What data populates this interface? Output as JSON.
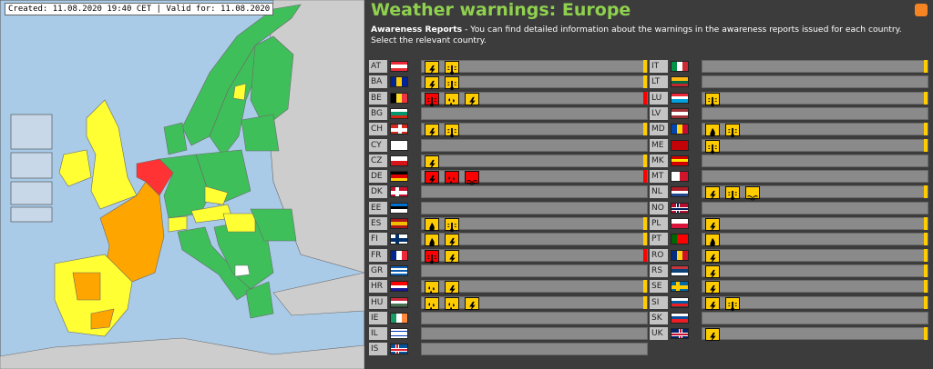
{
  "header": {
    "created": "Created: 11.08.2020 19:40 CET | Valid for: 11.08.2020"
  },
  "title": "Weather warnings: Europe",
  "intro_label": "Awareness Reports",
  "intro_text": "- You can find detailed information about the warnings in the awareness reports issued for each country. Select the relevant country.",
  "columns": [
    [
      {
        "code": "AT",
        "flag": {
          "dir": "h",
          "colors": [
            "#ed2939",
            "#ffffff",
            "#ed2939"
          ]
        },
        "warnings": [
          {
            "kind": "thunder",
            "color": "#ffcc00"
          },
          {
            "kind": "temperature",
            "color": "#ffcc00"
          }
        ],
        "level": "#ffcc00"
      },
      {
        "code": "BA",
        "flag": {
          "dir": "v",
          "colors": [
            "#002395",
            "#fecb00",
            "#002395"
          ]
        },
        "warnings": [
          {
            "kind": "thunder",
            "color": "#ffcc00"
          },
          {
            "kind": "temperature",
            "color": "#ffcc00"
          }
        ],
        "level": "#ffcc00"
      },
      {
        "code": "BE",
        "flag": {
          "dir": "v",
          "colors": [
            "#000000",
            "#fdda24",
            "#ef3340"
          ]
        },
        "warnings": [
          {
            "kind": "temperature",
            "color": "#ff0000"
          },
          {
            "kind": "rain",
            "color": "#ffcc00"
          },
          {
            "kind": "thunder",
            "color": "#ffcc00"
          }
        ],
        "level": "#ff0000"
      },
      {
        "code": "BG",
        "flag": {
          "dir": "h",
          "colors": [
            "#ffffff",
            "#00966e",
            "#d62612"
          ]
        },
        "warnings": []
      },
      {
        "code": "CH",
        "flag": {
          "dir": "h",
          "colors": [
            "#d52b1e"
          ],
          "cross": {
            "color": "#ffffff",
            "center": true
          }
        },
        "warnings": [
          {
            "kind": "thunder",
            "color": "#ffcc00"
          },
          {
            "kind": "temperature",
            "color": "#ffcc00"
          }
        ],
        "level": "#ffcc00"
      },
      {
        "code": "CY",
        "flag": {
          "dir": "h",
          "colors": [
            "#ffffff"
          ]
        },
        "warnings": []
      },
      {
        "code": "CZ",
        "flag": {
          "dir": "h",
          "colors": [
            "#ffffff",
            "#d7141a"
          ]
        },
        "warnings": [
          {
            "kind": "thunder",
            "color": "#ffcc00"
          }
        ],
        "level": "#ffcc00"
      },
      {
        "code": "DE",
        "flag": {
          "dir": "h",
          "colors": [
            "#000000",
            "#dd0000",
            "#ffce00"
          ]
        },
        "warnings": [
          {
            "kind": "thunder",
            "color": "#ff0000"
          },
          {
            "kind": "rain",
            "color": "#ff0000"
          },
          {
            "kind": "flood",
            "color": "#ff0000"
          }
        ],
        "level": "#ff0000"
      },
      {
        "code": "DK",
        "flag": {
          "dir": "h",
          "colors": [
            "#c8102e"
          ],
          "cross": {
            "color": "#ffffff"
          }
        },
        "warnings": []
      },
      {
        "code": "EE",
        "flag": {
          "dir": "h",
          "colors": [
            "#0072ce",
            "#000000",
            "#ffffff"
          ]
        },
        "warnings": []
      },
      {
        "code": "ES",
        "flag": {
          "dir": "h",
          "colors": [
            "#aa151b",
            "#f1bf00",
            "#aa151b"
          ]
        },
        "warnings": [
          {
            "kind": "fire",
            "color": "#ffcc00"
          },
          {
            "kind": "temperature",
            "color": "#ffcc00"
          }
        ],
        "level": "#ffcc00"
      },
      {
        "code": "FI",
        "flag": {
          "dir": "h",
          "colors": [
            "#ffffff"
          ],
          "cross": {
            "color": "#002f6c"
          }
        },
        "warnings": [
          {
            "kind": "fire",
            "color": "#ffcc00"
          },
          {
            "kind": "thunder",
            "color": "#ffcc00"
          }
        ],
        "level": "#ffcc00"
      },
      {
        "code": "FR",
        "flag": {
          "dir": "v",
          "colors": [
            "#002395",
            "#ffffff",
            "#ed2939"
          ]
        },
        "warnings": [
          {
            "kind": "temperature",
            "color": "#ff0000"
          },
          {
            "kind": "thunder",
            "color": "#ffcc00"
          }
        ],
        "level": "#ff0000"
      },
      {
        "code": "GR",
        "flag": {
          "dir": "h",
          "colors": [
            "#0d5eaf",
            "#ffffff",
            "#0d5eaf",
            "#ffffff",
            "#0d5eaf"
          ]
        },
        "warnings": []
      },
      {
        "code": "HR",
        "flag": {
          "dir": "h",
          "colors": [
            "#ff0000",
            "#ffffff",
            "#171796"
          ]
        },
        "warnings": [
          {
            "kind": "rain",
            "color": "#ffcc00"
          },
          {
            "kind": "thunder",
            "color": "#ffcc00"
          }
        ],
        "level": "#ffcc00"
      },
      {
        "code": "HU",
        "flag": {
          "dir": "h",
          "colors": [
            "#ce2939",
            "#ffffff",
            "#477050"
          ]
        },
        "warnings": [
          {
            "kind": "rain",
            "color": "#ffcc00"
          },
          {
            "kind": "rain",
            "color": "#ffcc00"
          },
          {
            "kind": "thunder",
            "color": "#ffcc00"
          }
        ],
        "level": "#ffcc00"
      },
      {
        "code": "IE",
        "flag": {
          "dir": "v",
          "colors": [
            "#169b62",
            "#ffffff",
            "#ff883e"
          ]
        },
        "warnings": []
      },
      {
        "code": "IL",
        "flag": {
          "dir": "h",
          "colors": [
            "#ffffff",
            "#0038b8",
            "#ffffff",
            "#ffffff",
            "#0038b8",
            "#ffffff"
          ]
        },
        "warnings": []
      },
      {
        "code": "IS",
        "flag": {
          "dir": "h",
          "colors": [
            "#02529c"
          ],
          "cross": {
            "color": "#ffffff",
            "inner": "#dc1e35"
          }
        },
        "warnings": []
      }
    ],
    [
      {
        "code": "IT",
        "flag": {
          "dir": "v",
          "colors": [
            "#009246",
            "#ffffff",
            "#ce2b37"
          ]
        },
        "warnings": [],
        "level": "#ffcc00"
      },
      {
        "code": "LT",
        "flag": {
          "dir": "h",
          "colors": [
            "#fdb913",
            "#006a44",
            "#c1272d"
          ]
        },
        "warnings": []
      },
      {
        "code": "LU",
        "flag": {
          "dir": "h",
          "colors": [
            "#ed2939",
            "#ffffff",
            "#00a1de"
          ]
        },
        "warnings": [
          {
            "kind": "temperature",
            "color": "#ffcc00"
          }
        ],
        "level": "#ffcc00"
      },
      {
        "code": "LV",
        "flag": {
          "dir": "h",
          "colors": [
            "#9e3039",
            "#ffffff",
            "#9e3039"
          ]
        },
        "warnings": []
      },
      {
        "code": "MD",
        "flag": {
          "dir": "v",
          "colors": [
            "#0046ae",
            "#ffd200",
            "#cc092f"
          ]
        },
        "warnings": [
          {
            "kind": "fire",
            "color": "#ffcc00"
          },
          {
            "kind": "temperature",
            "color": "#ffcc00"
          }
        ],
        "level": "#ffcc00"
      },
      {
        "code": "ME",
        "flag": {
          "dir": "h",
          "colors": [
            "#c40308"
          ]
        },
        "warnings": [
          {
            "kind": "temperature",
            "color": "#ffcc00"
          }
        ],
        "level": "#ffcc00"
      },
      {
        "code": "MK",
        "flag": {
          "dir": "h",
          "colors": [
            "#d20000",
            "#ffe600",
            "#d20000"
          ]
        },
        "warnings": []
      },
      {
        "code": "MT",
        "flag": {
          "dir": "v",
          "colors": [
            "#ffffff",
            "#cf142b"
          ]
        },
        "warnings": []
      },
      {
        "code": "NL",
        "flag": {
          "dir": "h",
          "colors": [
            "#ae1c28",
            "#ffffff",
            "#21468b"
          ]
        },
        "warnings": [
          {
            "kind": "thunder",
            "color": "#ffcc00"
          },
          {
            "kind": "temperature",
            "color": "#ffcc00"
          },
          {
            "kind": "flood",
            "color": "#ffcc00"
          }
        ],
        "level": "#ffcc00"
      },
      {
        "code": "NO",
        "flag": {
          "dir": "h",
          "colors": [
            "#ba0c2f"
          ],
          "cross": {
            "color": "#ffffff",
            "inner": "#00205b"
          }
        },
        "warnings": []
      },
      {
        "code": "PL",
        "flag": {
          "dir": "h",
          "colors": [
            "#ffffff",
            "#dc143c"
          ]
        },
        "warnings": [
          {
            "kind": "thunder",
            "color": "#ffcc00"
          }
        ],
        "level": "#ffcc00"
      },
      {
        "code": "PT",
        "flag": {
          "dir": "v",
          "colors": [
            "#006600",
            "#ff0000",
            "#ff0000"
          ]
        },
        "warnings": [
          {
            "kind": "fire",
            "color": "#ffcc00"
          }
        ],
        "level": "#ffcc00"
      },
      {
        "code": "RO",
        "flag": {
          "dir": "v",
          "colors": [
            "#002b7f",
            "#fcd116",
            "#ce1126"
          ]
        },
        "warnings": [
          {
            "kind": "thunder",
            "color": "#ffcc00"
          }
        ],
        "level": "#ffcc00"
      },
      {
        "code": "RS",
        "flag": {
          "dir": "h",
          "colors": [
            "#c6363c",
            "#0c4076",
            "#ffffff"
          ]
        },
        "warnings": [
          {
            "kind": "thunder",
            "color": "#ffcc00"
          }
        ],
        "level": "#ffcc00"
      },
      {
        "code": "SE",
        "flag": {
          "dir": "h",
          "colors": [
            "#006aa7"
          ],
          "cross": {
            "color": "#fecc00"
          }
        },
        "warnings": [
          {
            "kind": "thunder",
            "color": "#ffcc00"
          }
        ],
        "level": "#ffcc00"
      },
      {
        "code": "SI",
        "flag": {
          "dir": "h",
          "colors": [
            "#ffffff",
            "#005da4",
            "#ed1c24"
          ]
        },
        "warnings": [
          {
            "kind": "thunder",
            "color": "#ffcc00"
          },
          {
            "kind": "temperature",
            "color": "#ffcc00"
          }
        ],
        "level": "#ffcc00"
      },
      {
        "code": "SK",
        "flag": {
          "dir": "h",
          "colors": [
            "#ffffff",
            "#0b4ea2",
            "#ee1c25"
          ]
        },
        "warnings": []
      },
      {
        "code": "UK",
        "flag": {
          "dir": "h",
          "colors": [
            "#012169"
          ],
          "cross": {
            "color": "#ffffff",
            "inner": "#c8102e",
            "center": true
          }
        },
        "warnings": [
          {
            "kind": "thunder",
            "color": "#ffcc00"
          }
        ],
        "level": "#ffcc00"
      }
    ]
  ]
}
